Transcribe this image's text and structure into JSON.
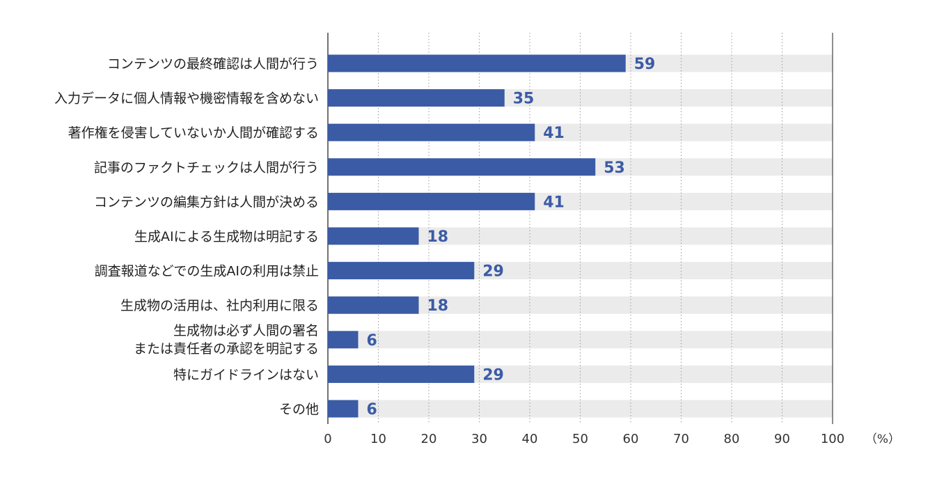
{
  "colors": {
    "bar": "#3b5ba5",
    "track": "#ebebeb",
    "value_text": "#3b5ba5",
    "grid": "#9a9a9a",
    "axis": "#444444"
  },
  "chart_data": {
    "type": "bar",
    "orientation": "horizontal",
    "categories": [
      [
        "コンテンツの最終確認は人間が行う"
      ],
      [
        "入力データに個人情報や機密情報を含めない"
      ],
      [
        "著作権を侵害していないか人間が確認する"
      ],
      [
        "記事のファクトチェックは人間が行う"
      ],
      [
        "コンテンツの編集方針は人間が決める"
      ],
      [
        "生成AIによる生成物は明記する"
      ],
      [
        "調査報道などでの生成AIの利用は禁止"
      ],
      [
        "生成物の活用は、社内利用に限る"
      ],
      [
        "生成物は必ず人間の署名",
        "または責任者の承認を明記する"
      ],
      [
        "特にガイドラインはない"
      ],
      [
        "その他"
      ]
    ],
    "values": [
      59,
      35,
      41,
      53,
      41,
      18,
      29,
      18,
      6,
      29,
      6
    ],
    "value_labels": [
      "59",
      "35",
      "41",
      "53",
      "41",
      "18",
      "29",
      "18",
      "6",
      "29",
      "6"
    ],
    "xlim": [
      0,
      100
    ],
    "x_ticks": [
      "0",
      "10",
      "20",
      "30",
      "40",
      "50",
      "60",
      "70",
      "80",
      "90",
      "100"
    ],
    "unit": "（%）",
    "grid": "vertical dotted"
  }
}
